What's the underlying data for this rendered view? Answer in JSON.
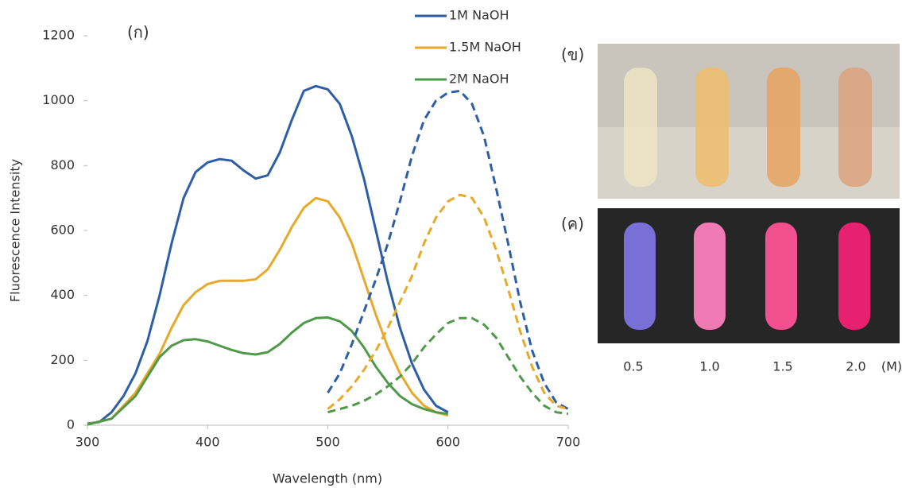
{
  "chart_data": {
    "type": "line",
    "panel_label": "(ก)",
    "x_label": "Wavelength (nm)",
    "y_label": "Fluorescence Intensity",
    "xlim": [
      300,
      700
    ],
    "xticks": [
      300,
      400,
      500,
      600,
      700
    ],
    "ylim": [
      0,
      1200
    ],
    "yticks": [
      0,
      200,
      400,
      600,
      800,
      1000,
      1200
    ],
    "series": [
      {
        "name": "1M NaOH",
        "color": "#2e5ea8",
        "dash": false,
        "x": [
          300,
          310,
          320,
          330,
          340,
          350,
          360,
          370,
          380,
          390,
          400,
          410,
          420,
          430,
          440,
          450,
          460,
          470,
          480,
          490,
          500,
          510,
          520,
          530,
          540,
          550,
          560,
          570,
          580,
          590,
          600
        ],
        "values": [
          5,
          10,
          40,
          90,
          160,
          260,
          400,
          560,
          700,
          780,
          810,
          820,
          815,
          785,
          760,
          770,
          840,
          940,
          1030,
          1045,
          1035,
          990,
          890,
          760,
          600,
          440,
          300,
          190,
          110,
          60,
          40
        ]
      },
      {
        "name": "1.5M NaOH",
        "color": "#e8a92a",
        "dash": false,
        "x": [
          300,
          320,
          340,
          360,
          370,
          380,
          390,
          400,
          410,
          420,
          430,
          440,
          450,
          460,
          470,
          480,
          490,
          500,
          510,
          520,
          530,
          540,
          550,
          560,
          570,
          580,
          590,
          600
        ],
        "values": [
          3,
          20,
          100,
          220,
          300,
          370,
          410,
          435,
          445,
          445,
          445,
          450,
          480,
          540,
          610,
          670,
          700,
          690,
          640,
          560,
          450,
          340,
          240,
          160,
          100,
          60,
          40,
          30
        ]
      },
      {
        "name": "2M NaOH",
        "color": "#4f9a4a",
        "dash": false,
        "x": [
          300,
          320,
          340,
          350,
          360,
          370,
          380,
          390,
          400,
          410,
          420,
          430,
          440,
          450,
          460,
          470,
          480,
          490,
          500,
          510,
          520,
          530,
          540,
          550,
          560,
          570,
          580,
          590,
          600
        ],
        "values": [
          2,
          20,
          90,
          150,
          210,
          245,
          262,
          265,
          258,
          245,
          232,
          222,
          218,
          225,
          250,
          285,
          315,
          330,
          332,
          320,
          290,
          240,
          180,
          130,
          90,
          65,
          50,
          40,
          35
        ]
      },
      {
        "color": "#2e5ea8",
        "dash": true,
        "x": [
          500,
          510,
          520,
          530,
          540,
          550,
          560,
          570,
          580,
          590,
          600,
          610,
          620,
          630,
          640,
          650,
          660,
          670,
          680,
          690,
          700
        ],
        "values": [
          100,
          160,
          250,
          350,
          450,
          560,
          690,
          830,
          940,
          1000,
          1025,
          1030,
          990,
          890,
          730,
          560,
          380,
          230,
          130,
          70,
          50
        ]
      },
      {
        "color": "#e8a92a",
        "dash": true,
        "x": [
          500,
          510,
          520,
          530,
          540,
          550,
          560,
          570,
          580,
          590,
          600,
          610,
          620,
          630,
          640,
          650,
          660,
          670,
          680,
          690,
          700
        ],
        "values": [
          50,
          80,
          120,
          170,
          230,
          300,
          380,
          460,
          560,
          640,
          690,
          710,
          700,
          640,
          540,
          420,
          290,
          180,
          100,
          60,
          50
        ]
      },
      {
        "color": "#4f9a4a",
        "dash": true,
        "x": [
          500,
          510,
          520,
          530,
          540,
          550,
          560,
          570,
          580,
          590,
          600,
          610,
          620,
          630,
          640,
          650,
          660,
          670,
          680,
          690,
          700
        ],
        "values": [
          40,
          50,
          60,
          75,
          95,
          120,
          150,
          190,
          240,
          280,
          315,
          330,
          330,
          310,
          270,
          210,
          150,
          100,
          60,
          40,
          35
        ]
      }
    ],
    "photos": {
      "daylight_label": "(ข)",
      "uv_label": "(ค)",
      "concentrations": [
        "0.5",
        "1.0",
        "1.5",
        "2.0"
      ],
      "unit": "(M)"
    }
  }
}
